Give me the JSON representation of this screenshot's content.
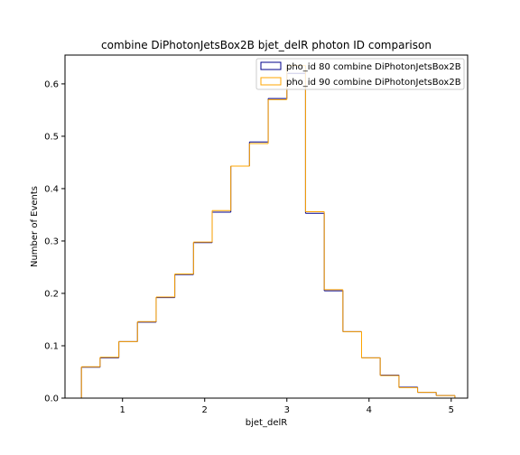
{
  "chart_data": {
    "type": "histogram-step",
    "title": "combine DiPhotonJetsBox2B bjet_delR photon ID comparison",
    "xlabel": "bjet_delR",
    "ylabel": "Number of Events",
    "xlim": [
      0.3,
      5.2
    ],
    "ylim": [
      0,
      0.655
    ],
    "xticks": [
      1,
      2,
      3,
      4,
      5
    ],
    "xtick_labels": [
      "1",
      "2",
      "3",
      "4",
      "5"
    ],
    "yticks": [
      0.0,
      0.1,
      0.2,
      0.3,
      0.4,
      0.5,
      0.6
    ],
    "ytick_labels": [
      "0.0",
      "0.1",
      "0.2",
      "0.3",
      "0.4",
      "0.5",
      "0.6"
    ],
    "grid": false,
    "legend_position": "top-right",
    "bin_edges": [
      0.5,
      0.727,
      0.955,
      1.182,
      1.409,
      1.636,
      1.864,
      2.091,
      2.318,
      2.545,
      2.773,
      3.0,
      3.227,
      3.455,
      3.682,
      3.909,
      4.136,
      4.364,
      4.591,
      4.818,
      5.045
    ],
    "series": [
      {
        "name": "pho_id 80 combine DiPhotonJetsBox2B",
        "color": "#00008b",
        "values": [
          0.059,
          0.077,
          0.108,
          0.145,
          0.192,
          0.236,
          0.297,
          0.355,
          0.443,
          0.489,
          0.572,
          0.62,
          0.353,
          0.205,
          0.127,
          0.077,
          0.044,
          0.021,
          0.011,
          0.005
        ]
      },
      {
        "name": "pho_id 90 combine DiPhotonJetsBox2B",
        "color": "#ffa500",
        "values": [
          0.06,
          0.078,
          0.108,
          0.146,
          0.193,
          0.237,
          0.298,
          0.358,
          0.443,
          0.486,
          0.57,
          0.635,
          0.356,
          0.207,
          0.127,
          0.077,
          0.043,
          0.02,
          0.011,
          0.005
        ]
      }
    ]
  }
}
